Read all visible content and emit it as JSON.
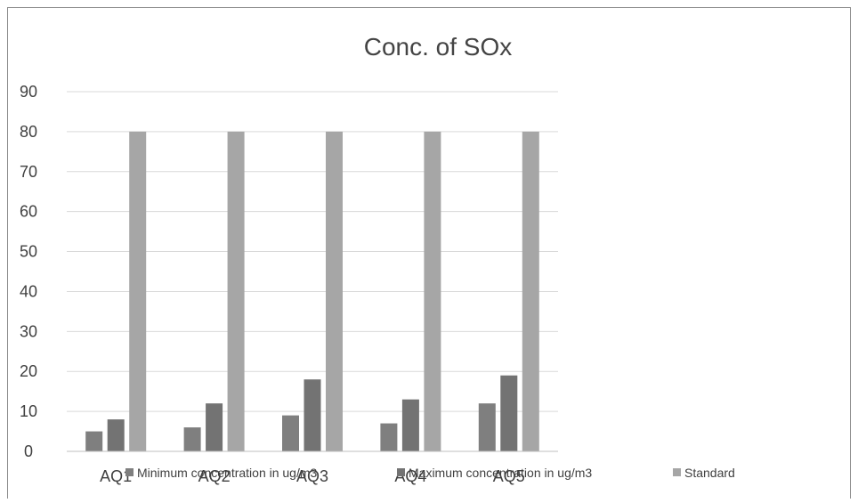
{
  "chart_data": {
    "type": "bar",
    "title": "Conc. of SOx",
    "xlabel": "",
    "ylabel": "",
    "categories": [
      "AQ1",
      "AQ2",
      "AQ3",
      "AQ4",
      "AQ5"
    ],
    "series": [
      {
        "name": "Minimum concentration in ug/m3",
        "values": [
          5,
          6,
          9,
          7,
          12
        ],
        "color": "#7f7f7f"
      },
      {
        "name": "Maximum concentration in ug/m3",
        "values": [
          8,
          12,
          18,
          13,
          19
        ],
        "color": "#737373"
      },
      {
        "name": "Standard",
        "values": [
          80,
          80,
          80,
          80,
          80
        ],
        "color": "#a6a6a6"
      }
    ],
    "ylim": [
      0,
      90
    ],
    "yticks": [
      "0",
      "10",
      "20",
      "30",
      "40",
      "50",
      "60",
      "70",
      "80",
      "90"
    ],
    "grid": true,
    "legend_position": "bottom",
    "gridline_color": "#d9d9d9",
    "axis_color": "#bfbfbf"
  }
}
